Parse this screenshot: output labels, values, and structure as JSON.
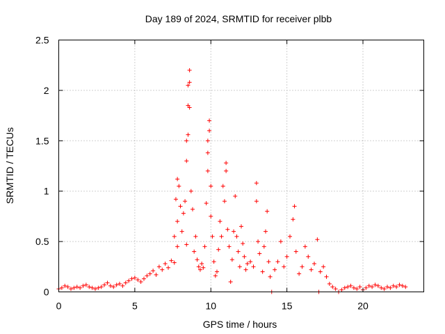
{
  "chart_data": {
    "type": "scatter",
    "title": "Day 189 of 2024, SRMTID for receiver plbb",
    "xlabel": "GPS time / hours",
    "ylabel": "SRMTID / TECUs",
    "xlim": [
      0,
      24
    ],
    "ylim": [
      0,
      2.5
    ],
    "x_ticks": [
      0,
      5,
      10,
      15,
      20
    ],
    "x_tick_labels": [
      "0",
      "5",
      "10",
      "15",
      "20"
    ],
    "y_ticks": [
      0,
      0.5,
      1,
      1.5,
      2,
      2.5
    ],
    "y_tick_labels": [
      "0",
      "0.5",
      "1",
      "1.5",
      "2",
      "2.5"
    ],
    "grid": true,
    "marker": "plus",
    "color": "#ff0000",
    "series": [
      {
        "name": "SRMTID",
        "points": [
          [
            0.0,
            0.03
          ],
          [
            0.2,
            0.04
          ],
          [
            0.4,
            0.06
          ],
          [
            0.6,
            0.05
          ],
          [
            0.8,
            0.03
          ],
          [
            1.0,
            0.04
          ],
          [
            1.2,
            0.05
          ],
          [
            1.4,
            0.04
          ],
          [
            1.6,
            0.06
          ],
          [
            1.8,
            0.07
          ],
          [
            2.0,
            0.05
          ],
          [
            2.2,
            0.04
          ],
          [
            2.4,
            0.03
          ],
          [
            2.6,
            0.04
          ],
          [
            2.8,
            0.05
          ],
          [
            3.0,
            0.07
          ],
          [
            3.2,
            0.09
          ],
          [
            3.4,
            0.06
          ],
          [
            3.6,
            0.05
          ],
          [
            3.8,
            0.07
          ],
          [
            4.0,
            0.08
          ],
          [
            4.2,
            0.06
          ],
          [
            4.4,
            0.09
          ],
          [
            4.6,
            0.11
          ],
          [
            4.8,
            0.13
          ],
          [
            5.0,
            0.14
          ],
          [
            5.2,
            0.12
          ],
          [
            5.4,
            0.1
          ],
          [
            5.6,
            0.13
          ],
          [
            5.8,
            0.16
          ],
          [
            6.0,
            0.18
          ],
          [
            6.2,
            0.21
          ],
          [
            6.4,
            0.17
          ],
          [
            6.6,
            0.25
          ],
          [
            6.8,
            0.22
          ],
          [
            7.0,
            0.28
          ],
          [
            7.2,
            0.24
          ],
          [
            7.4,
            0.31
          ],
          [
            7.6,
            0.29
          ],
          [
            7.8,
            0.45
          ],
          [
            7.6,
            0.55
          ],
          [
            7.8,
            0.7
          ],
          [
            7.7,
            0.92
          ],
          [
            7.8,
            1.12
          ],
          [
            7.9,
            1.05
          ],
          [
            8.0,
            0.85
          ],
          [
            8.1,
            0.6
          ],
          [
            8.2,
            0.78
          ],
          [
            8.3,
            0.9
          ],
          [
            8.4,
            0.47
          ],
          [
            8.4,
            1.3
          ],
          [
            8.4,
            1.5
          ],
          [
            8.5,
            1.56
          ],
          [
            8.5,
            1.85
          ],
          [
            8.5,
            2.05
          ],
          [
            8.6,
            2.2
          ],
          [
            8.6,
            2.08
          ],
          [
            8.6,
            1.83
          ],
          [
            8.7,
            1.0
          ],
          [
            8.8,
            0.82
          ],
          [
            8.9,
            0.4
          ],
          [
            9.0,
            0.55
          ],
          [
            9.1,
            0.32
          ],
          [
            9.2,
            0.25
          ],
          [
            9.3,
            0.22
          ],
          [
            9.4,
            0.28
          ],
          [
            9.5,
            0.24
          ],
          [
            9.6,
            0.45
          ],
          [
            9.7,
            0.88
          ],
          [
            9.8,
            1.2
          ],
          [
            9.8,
            1.38
          ],
          [
            9.8,
            1.5
          ],
          [
            9.9,
            1.7
          ],
          [
            9.9,
            1.6
          ],
          [
            10.0,
            1.05
          ],
          [
            10.0,
            0.75
          ],
          [
            10.1,
            0.55
          ],
          [
            10.2,
            0.3
          ],
          [
            10.3,
            0.16
          ],
          [
            10.4,
            0.2
          ],
          [
            10.5,
            0.42
          ],
          [
            10.6,
            0.7
          ],
          [
            10.7,
            0.55
          ],
          [
            10.8,
            1.05
          ],
          [
            10.9,
            0.9
          ],
          [
            11.0,
            1.2
          ],
          [
            11.0,
            1.28
          ],
          [
            11.1,
            0.62
          ],
          [
            11.2,
            0.45
          ],
          [
            11.3,
            0.1
          ],
          [
            11.4,
            0.32
          ],
          [
            11.5,
            0.6
          ],
          [
            11.6,
            0.95
          ],
          [
            11.7,
            0.55
          ],
          [
            11.8,
            0.4
          ],
          [
            11.9,
            0.25
          ],
          [
            12.0,
            0.65
          ],
          [
            12.1,
            0.48
          ],
          [
            12.2,
            0.35
          ],
          [
            12.3,
            0.22
          ],
          [
            12.4,
            0.28
          ],
          [
            12.6,
            0.3
          ],
          [
            12.8,
            0.25
          ],
          [
            13.0,
            0.9
          ],
          [
            13.0,
            1.08
          ],
          [
            13.1,
            0.5
          ],
          [
            13.2,
            0.38
          ],
          [
            13.4,
            0.2
          ],
          [
            13.5,
            0.45
          ],
          [
            13.6,
            0.6
          ],
          [
            13.7,
            0.8
          ],
          [
            13.8,
            0.3
          ],
          [
            13.9,
            0.15
          ],
          [
            14.0,
            0.0
          ],
          [
            14.2,
            0.22
          ],
          [
            14.4,
            0.3
          ],
          [
            14.6,
            0.5
          ],
          [
            14.8,
            0.25
          ],
          [
            15.0,
            0.35
          ],
          [
            15.2,
            0.55
          ],
          [
            15.4,
            0.72
          ],
          [
            15.5,
            0.85
          ],
          [
            15.6,
            0.4
          ],
          [
            15.8,
            0.18
          ],
          [
            16.0,
            0.25
          ],
          [
            16.2,
            0.45
          ],
          [
            16.4,
            0.35
          ],
          [
            16.6,
            0.22
          ],
          [
            16.8,
            0.28
          ],
          [
            17.0,
            0.52
          ],
          [
            17.1,
            0.0
          ],
          [
            17.2,
            0.2
          ],
          [
            17.4,
            0.25
          ],
          [
            17.6,
            0.15
          ],
          [
            17.8,
            0.08
          ],
          [
            18.0,
            0.05
          ],
          [
            18.2,
            0.03
          ],
          [
            18.4,
            0.0
          ],
          [
            18.6,
            0.02
          ],
          [
            18.8,
            0.04
          ],
          [
            19.0,
            0.05
          ],
          [
            19.2,
            0.06
          ],
          [
            19.4,
            0.04
          ],
          [
            19.6,
            0.03
          ],
          [
            19.8,
            0.05
          ],
          [
            20.0,
            0.02
          ],
          [
            20.2,
            0.04
          ],
          [
            20.4,
            0.06
          ],
          [
            20.6,
            0.05
          ],
          [
            20.8,
            0.07
          ],
          [
            21.0,
            0.06
          ],
          [
            21.2,
            0.04
          ],
          [
            21.4,
            0.03
          ],
          [
            21.6,
            0.05
          ],
          [
            21.8,
            0.04
          ],
          [
            22.0,
            0.06
          ],
          [
            22.2,
            0.05
          ],
          [
            22.4,
            0.07
          ],
          [
            22.6,
            0.06
          ],
          [
            22.8,
            0.05
          ]
        ]
      }
    ]
  }
}
